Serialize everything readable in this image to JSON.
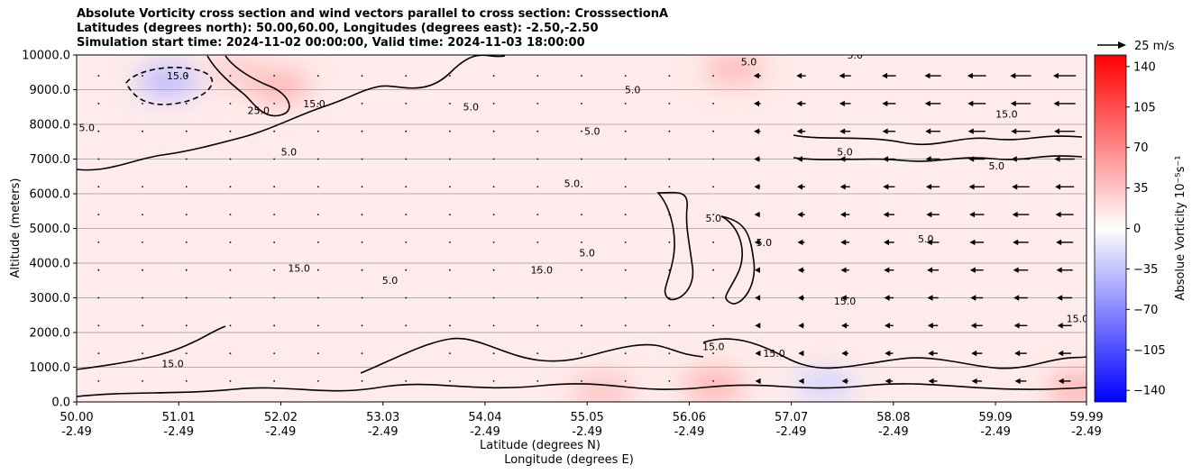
{
  "titles": [
    "Absolute Vorticity cross section and wind vectors parallel to cross section: CrosssectionA",
    "Latitudes (degrees north): 50.00,60.00, Longitudes (degrees east): -2.50,-2.50",
    "Simulation start time: 2024-11-02 00:00:00, Valid time: 2024-11-03 18:00:00"
  ],
  "chart_data": {
    "type": "heatmap",
    "ylabel": "Altitude (meters)",
    "xlabel": "Latitude (degrees N)",
    "xlabel2": "Longitude (degrees E)",
    "xlim": [
      50.0,
      59.99
    ],
    "ylim": [
      0,
      10000
    ],
    "grid": "horizontal",
    "x_ticks": [
      {
        "lat": "50.00",
        "lon": "-2.49",
        "v": 50.0
      },
      {
        "lat": "51.01",
        "lon": "-2.49",
        "v": 51.01
      },
      {
        "lat": "52.02",
        "lon": "-2.49",
        "v": 52.02
      },
      {
        "lat": "53.03",
        "lon": "-2.49",
        "v": 53.03
      },
      {
        "lat": "54.04",
        "lon": "-2.49",
        "v": 54.04
      },
      {
        "lat": "55.05",
        "lon": "-2.49",
        "v": 55.05
      },
      {
        "lat": "56.06",
        "lon": "-2.49",
        "v": 56.06
      },
      {
        "lat": "57.07",
        "lon": "-2.49",
        "v": 57.07
      },
      {
        "lat": "58.08",
        "lon": "-2.49",
        "v": 58.08
      },
      {
        "lat": "59.09",
        "lon": "-2.49",
        "v": 59.09
      },
      {
        "lat": "59.99",
        "lon": "-2.49",
        "v": 59.99
      }
    ],
    "y_ticks": [
      {
        "label": "0.0",
        "v": 0
      },
      {
        "label": "1000.0",
        "v": 1000
      },
      {
        "label": "2000.0",
        "v": 2000
      },
      {
        "label": "3000.0",
        "v": 3000
      },
      {
        "label": "4000.0",
        "v": 4000
      },
      {
        "label": "5000.0",
        "v": 5000
      },
      {
        "label": "6000.0",
        "v": 6000
      },
      {
        "label": "7000.0",
        "v": 7000
      },
      {
        "label": "8000.0",
        "v": 8000
      },
      {
        "label": "9000.0",
        "v": 9000
      },
      {
        "label": "10000.0",
        "v": 10000
      }
    ],
    "colorbar": {
      "label": "Absolue Vorticity 10⁻⁵s⁻¹",
      "range": [
        -150,
        150
      ],
      "colormap": "bwr",
      "colors": {
        "min": "#0000ff",
        "mid": "#ffffff",
        "max": "#ff0000"
      },
      "ticks": [
        {
          "label": "140",
          "v": 140
        },
        {
          "label": "105",
          "v": 105
        },
        {
          "label": "70",
          "v": 70
        },
        {
          "label": "35",
          "v": 35
        },
        {
          "label": "0",
          "v": 0
        },
        {
          "label": "−35",
          "v": -35
        },
        {
          "label": "−70",
          "v": -70
        },
        {
          "label": "−105",
          "v": -105
        },
        {
          "label": "−140",
          "v": -140
        }
      ]
    },
    "quiver_key": {
      "label": "25 m/s",
      "speed": 25
    },
    "background_vorticity": 12,
    "vorticity_blobs": [
      {
        "lat": 50.9,
        "alt": 9250,
        "value": -40
      },
      {
        "lat": 52.0,
        "alt": 9100,
        "value": 45
      },
      {
        "lat": 51.6,
        "alt": 9500,
        "value": 30
      },
      {
        "lat": 56.5,
        "alt": 9600,
        "value": 40
      },
      {
        "lat": 56.3,
        "alt": 500,
        "value": 45
      },
      {
        "lat": 55.2,
        "alt": 350,
        "value": 35
      },
      {
        "lat": 59.9,
        "alt": 400,
        "value": 45
      },
      {
        "lat": 57.4,
        "alt": 500,
        "value": -25
      },
      {
        "lat": 58.0,
        "alt": 7300,
        "value": 8
      }
    ],
    "contour_levels": [
      5.0,
      15.0,
      25.0
    ],
    "contour_labels": [
      {
        "text": "15.0",
        "lat": 52.2,
        "alt": 3750
      },
      {
        "text": "5.0",
        "lat": 50.1,
        "alt": 7800
      },
      {
        "text": "15.0",
        "lat": 51.0,
        "alt": 9300
      },
      {
        "text": "25.0",
        "lat": 51.8,
        "alt": 8300
      },
      {
        "text": "15.0",
        "lat": 52.35,
        "alt": 8500
      },
      {
        "text": "5.0",
        "lat": 52.1,
        "alt": 7100
      },
      {
        "text": "5.0",
        "lat": 53.9,
        "alt": 8400
      },
      {
        "text": "5.0",
        "lat": 55.1,
        "alt": 7700
      },
      {
        "text": "5.0",
        "lat": 54.9,
        "alt": 6200
      },
      {
        "text": "5.0",
        "lat": 55.05,
        "alt": 4200
      },
      {
        "text": "15.0",
        "lat": 54.6,
        "alt": 3700
      },
      {
        "text": "5.0",
        "lat": 53.1,
        "alt": 3400
      },
      {
        "text": "5.0",
        "lat": 56.3,
        "alt": 5200
      },
      {
        "text": "5.0",
        "lat": 56.8,
        "alt": 4500
      },
      {
        "text": "5.0",
        "lat": 57.6,
        "alt": 7100
      },
      {
        "text": "5.0",
        "lat": 58.4,
        "alt": 4600
      },
      {
        "text": "5.0",
        "lat": 59.1,
        "alt": 6700
      },
      {
        "text": "15.0",
        "lat": 59.2,
        "alt": 8200
      },
      {
        "text": "15.0",
        "lat": 57.6,
        "alt": 2800
      },
      {
        "text": "15.0",
        "lat": 59.9,
        "alt": 2300
      },
      {
        "text": "15.0",
        "lat": 56.3,
        "alt": 1500
      },
      {
        "text": "15.0",
        "lat": 56.9,
        "alt": 1300
      },
      {
        "text": "15.0",
        "lat": 50.95,
        "alt": 1000
      },
      {
        "text": "5.0",
        "lat": 55.5,
        "alt": 8900
      },
      {
        "text": "5.0",
        "lat": 56.65,
        "alt": 9700
      },
      {
        "text": "5.0",
        "lat": 57.7,
        "alt": 9900
      }
    ],
    "wind_field": {
      "calm_region_lat": [
        50.0,
        56.6
      ],
      "westward_region_lat": [
        56.7,
        59.99
      ],
      "max_speed_m_s": 28
    }
  }
}
